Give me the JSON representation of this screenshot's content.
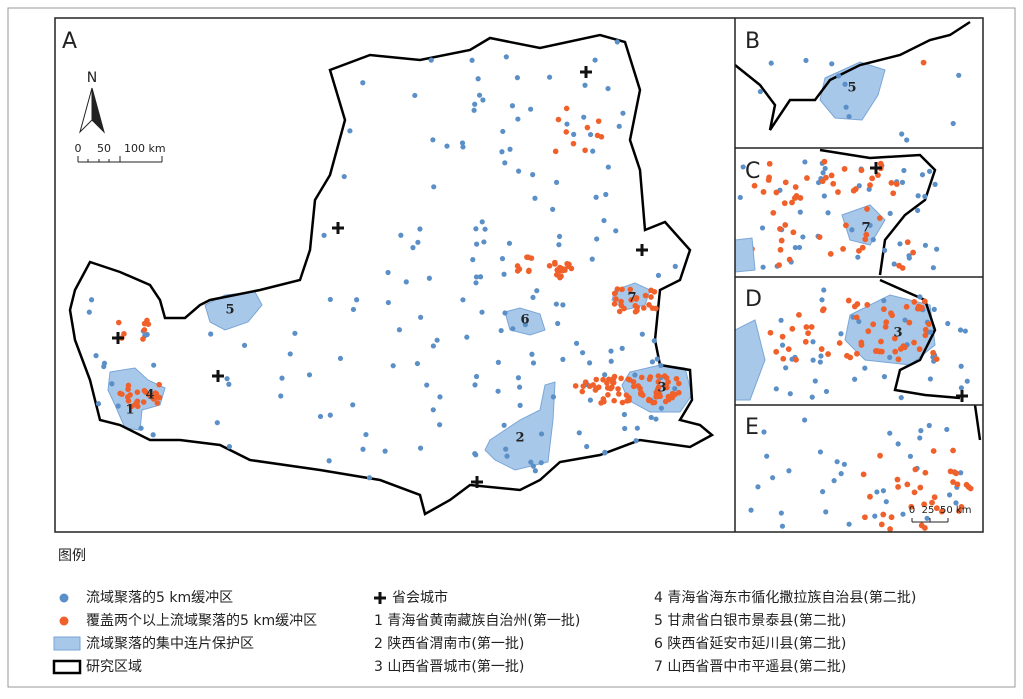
{
  "panels": [
    "A",
    "B",
    "C",
    "D",
    "E"
  ],
  "north": "N",
  "scale_main": [
    "0",
    "50",
    "100 km"
  ],
  "scale_inset": [
    "0",
    "25",
    "50 km"
  ],
  "region_numbers": [
    "1",
    "2",
    "3",
    "4",
    "5",
    "6",
    "7"
  ],
  "legend": {
    "title": "图例",
    "symbols": [
      "流域聚落的5 km缓冲区",
      "覆盖两个以上流域聚落的5 km缓冲区",
      "流域聚落的集中连片保护区",
      "研究区域",
      "省会城市"
    ],
    "areas": [
      "1 青海省黄南藏族自治州(第一批)",
      "2 陕西省渭南市(第一批)",
      "3 山西省晋城市(第一批)",
      "4 青海省海东市循化撒拉族自治县(第二批)",
      "5 甘肃省白银市景泰县(第二批)",
      "6 陕西省延安市延川县(第二批)",
      "7 山西省晋中市平遥县(第二批)"
    ]
  }
}
